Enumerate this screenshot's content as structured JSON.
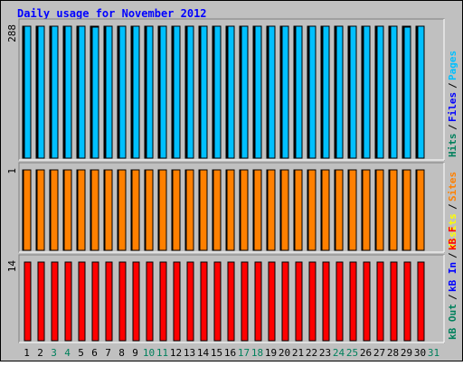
{
  "chart_data": {
    "type": "bar",
    "title": "Daily usage for November 2012",
    "categories": [
      "1",
      "2",
      "3",
      "4",
      "5",
      "6",
      "7",
      "8",
      "9",
      "10",
      "11",
      "12",
      "13",
      "14",
      "15",
      "16",
      "17",
      "18",
      "19",
      "20",
      "21",
      "22",
      "23",
      "24",
      "25",
      "26",
      "27",
      "28",
      "29",
      "30",
      "31"
    ],
    "weekend_days": [
      "3",
      "4",
      "10",
      "11",
      "17",
      "18",
      "24",
      "25",
      "31"
    ],
    "panels": [
      {
        "name": "top",
        "max_label": "288",
        "ylim": [
          0,
          288
        ],
        "series": [
          {
            "name": "Hits",
            "color": "#00805c",
            "values": [
              288,
              288,
              288,
              288,
              288,
              288,
              288,
              288,
              288,
              288,
              288,
              288,
              288,
              288,
              288,
              288,
              288,
              288,
              288,
              288,
              288,
              288,
              288,
              288,
              288,
              288,
              288,
              288,
              288,
              288
            ]
          },
          {
            "name": "Files",
            "color": "#0000ff",
            "values": [
              288,
              288,
              288,
              288,
              288,
              286,
              288,
              288,
              288,
              288,
              288,
              288,
              288,
              288,
              288,
              288,
              288,
              288,
              288,
              288,
              288,
              288,
              288,
              288,
              288,
              288,
              288,
              288,
              286,
              288
            ]
          },
          {
            "name": "Pages",
            "color": "#00c0ff",
            "values": [
              288,
              288,
              288,
              288,
              288,
              286,
              288,
              288,
              288,
              288,
              288,
              288,
              288,
              288,
              288,
              288,
              288,
              288,
              288,
              288,
              288,
              288,
              288,
              288,
              288,
              288,
              288,
              288,
              286,
              288
            ]
          }
        ],
        "legend": [
          {
            "text": "Hits",
            "color": "#00805c"
          },
          {
            "text": "/",
            "color": "#000000"
          },
          {
            "text": "Files",
            "color": "#0000ff"
          },
          {
            "text": "/",
            "color": "#000000"
          },
          {
            "text": "Pages",
            "color": "#00c0ff"
          }
        ]
      },
      {
        "name": "middle",
        "max_label": "1",
        "ylim": [
          0,
          1
        ],
        "series": [
          {
            "name": "Visits",
            "color": "#ffff00",
            "values": [
              1,
              1,
              1,
              1,
              1,
              1,
              1,
              1,
              1,
              1,
              1,
              1,
              1,
              1,
              1,
              1,
              1,
              1,
              1,
              1,
              1,
              1,
              1,
              1,
              1,
              1,
              1,
              1,
              1,
              1
            ]
          },
          {
            "name": "Sites",
            "color": "#ff8000",
            "values": [
              1,
              1,
              1,
              1,
              1,
              1,
              1,
              1,
              1,
              1,
              1,
              1,
              1,
              1,
              1,
              1,
              1,
              1,
              1,
              1,
              1,
              1,
              1,
              1,
              1,
              1,
              1,
              1,
              1,
              1
            ]
          }
        ],
        "legend": [
          {
            "text": "Visits",
            "color": "#ffff00"
          },
          {
            "text": "/",
            "color": "#000000"
          },
          {
            "text": "Sites",
            "color": "#ff8000"
          }
        ]
      },
      {
        "name": "bottom",
        "max_label": "14",
        "ylim": [
          0,
          14
        ],
        "series": [
          {
            "name": "kB Out",
            "color": "#00805c",
            "values": [
              0,
              0,
              0,
              0,
              0,
              0,
              0,
              0,
              0,
              0,
              0,
              0,
              0,
              0,
              0,
              0,
              0,
              0,
              0,
              0,
              0,
              0,
              0,
              0,
              0,
              0,
              0,
              0,
              0,
              0
            ]
          },
          {
            "name": "kB In",
            "color": "#0000ff",
            "values": [
              0,
              0,
              0,
              0,
              0,
              0,
              0,
              0,
              0,
              0,
              0,
              0,
              0,
              0,
              0,
              0,
              0,
              0,
              0,
              0,
              0,
              0,
              0,
              0,
              0,
              0,
              0,
              0,
              0,
              0
            ]
          },
          {
            "name": "kB F",
            "color": "#ff0000",
            "values": [
              14,
              14,
              14,
              14,
              14,
              14,
              14,
              14,
              14,
              14,
              14,
              14,
              14,
              14,
              14,
              14,
              14,
              14,
              14,
              14,
              14,
              14,
              14,
              14,
              14,
              14,
              14,
              14,
              14,
              14
            ]
          }
        ],
        "legend": [
          {
            "text": "kB Out",
            "color": "#00805c"
          },
          {
            "text": "/",
            "color": "#000000"
          },
          {
            "text": "kB In",
            "color": "#0000ff"
          },
          {
            "text": "/",
            "color": "#000000"
          },
          {
            "text": "kB F",
            "color": "#ff0000"
          }
        ]
      }
    ],
    "colors": {
      "background": "#c0c0c0",
      "title": "#0000ff",
      "weekday_label": "#000000",
      "weekend_label": "#00805c",
      "border_dark": "#808080",
      "border_light": "#ffffff"
    }
  }
}
